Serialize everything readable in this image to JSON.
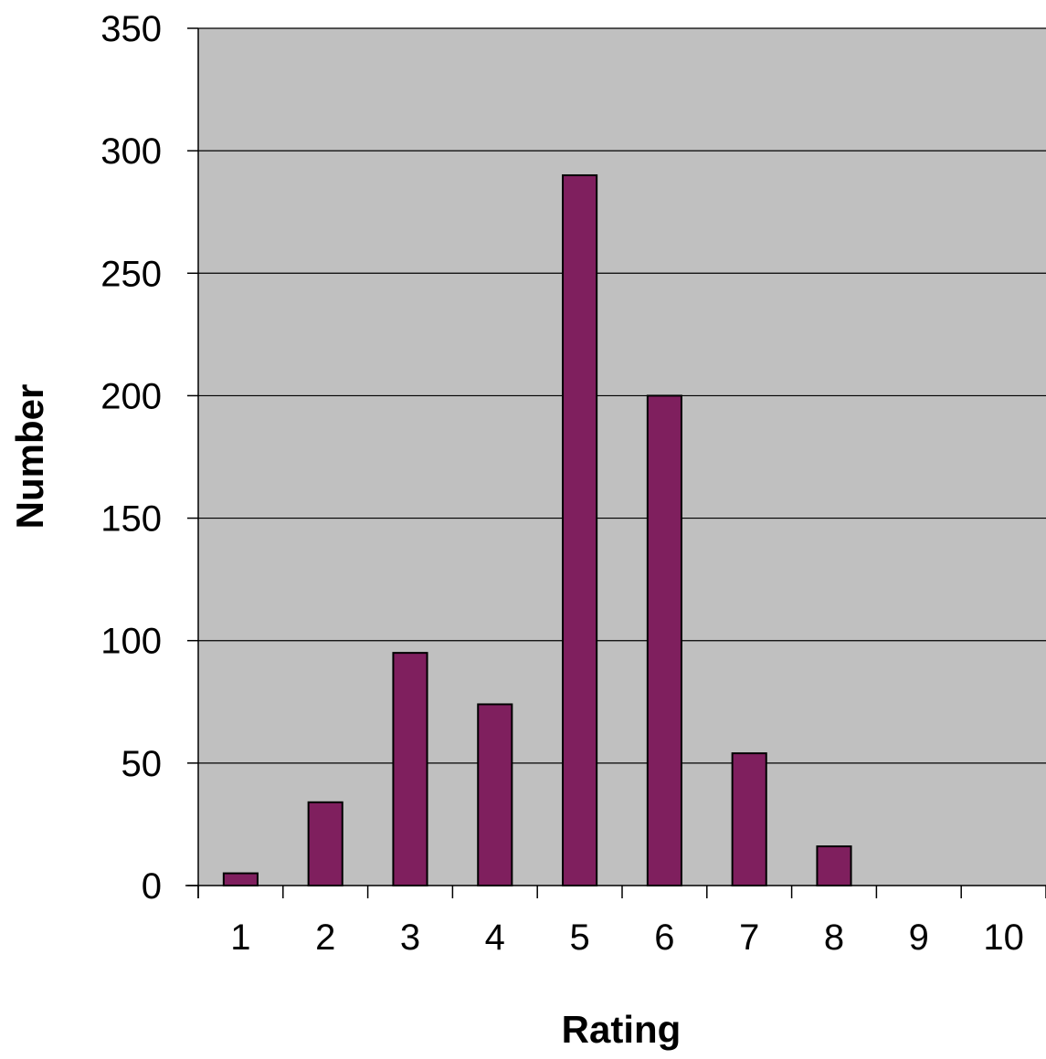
{
  "chart_data": {
    "type": "bar",
    "title": "",
    "xlabel": "Rating",
    "ylabel": "Number",
    "categories": [
      "1",
      "2",
      "3",
      "4",
      "5",
      "6",
      "7",
      "8",
      "9",
      "10"
    ],
    "values": [
      5,
      34,
      95,
      74,
      290,
      200,
      54,
      16,
      0,
      0
    ],
    "ylim": [
      0,
      350
    ],
    "yticks": [
      0,
      50,
      100,
      150,
      200,
      250,
      300,
      350
    ],
    "grid": true,
    "legend": "none",
    "colors": {
      "bar_fill": "#7F1F5E",
      "bar_stroke": "#000000",
      "plot_background": "#C0C0C0",
      "gridline": "#000000"
    }
  }
}
